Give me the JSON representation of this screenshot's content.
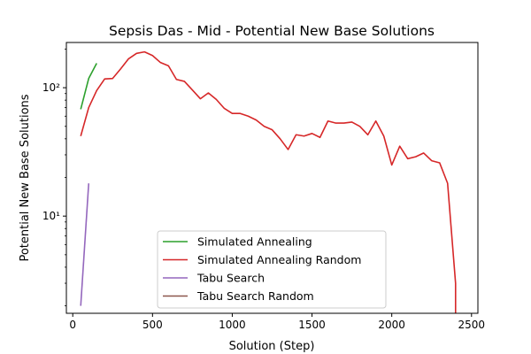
{
  "chart_data": {
    "type": "line",
    "title": "Sepsis Das - Mid - Potential New Base Solutions",
    "xlabel": "Solution (Step)",
    "ylabel": "Potential New Base Solutions",
    "xlim": [
      -40,
      2540
    ],
    "ylim": [
      1.75,
      225
    ],
    "y_scale": "log",
    "grid": false,
    "legend_position": "lower center",
    "x_ticks": [
      0,
      500,
      1000,
      1500,
      2000,
      2500
    ],
    "x_tick_labels": [
      "0",
      "500",
      "1000",
      "1500",
      "2000",
      "2500"
    ],
    "y_ticks": [
      10,
      100
    ],
    "y_tick_labels": [
      "10¹",
      "10²"
    ],
    "series": [
      {
        "name": "Simulated Annealing",
        "color": "#2ca02c",
        "x": [
          50,
          100,
          150
        ],
        "y": [
          68,
          118,
          155
        ]
      },
      {
        "name": "Simulated Annealing Random",
        "color": "#d62728",
        "x": [
          50,
          100,
          150,
          200,
          250,
          300,
          350,
          400,
          450,
          500,
          550,
          600,
          650,
          700,
          750,
          800,
          850,
          900,
          950,
          1000,
          1050,
          1100,
          1150,
          1200,
          1250,
          1300,
          1350,
          1400,
          1450,
          1500,
          1550,
          1600,
          1650,
          1700,
          1750,
          1800,
          1850,
          1900,
          1950,
          2000,
          2050,
          2100,
          2150,
          2200,
          2250,
          2300,
          2350,
          2400,
          2400
        ],
        "y": [
          42,
          70,
          95,
          117,
          118,
          140,
          168,
          185,
          190,
          178,
          157,
          148,
          116,
          112,
          96,
          82,
          91,
          81,
          69,
          63,
          63,
          60,
          56,
          50,
          47,
          40,
          33,
          43,
          42,
          44,
          41,
          55,
          53,
          53,
          54,
          50,
          43,
          55,
          42,
          25,
          35,
          28,
          29,
          31,
          27,
          26,
          18,
          3,
          1.7
        ]
      },
      {
        "name": "Tabu Search",
        "color": "#9467bd",
        "x": [
          50,
          100
        ],
        "y": [
          2,
          18
        ]
      },
      {
        "name": "Tabu Search Random",
        "color": "#8c564b",
        "x": [],
        "y": []
      }
    ]
  }
}
